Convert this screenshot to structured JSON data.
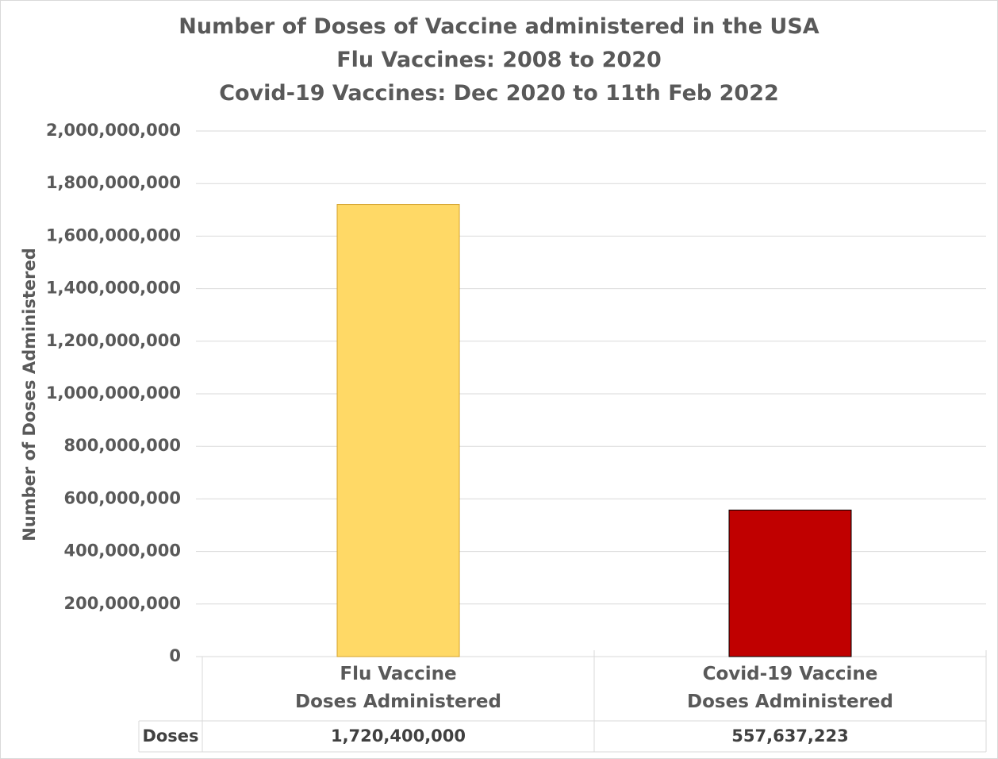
{
  "chart_data": {
    "type": "bar",
    "title": "Number of Doses of Vaccine administered in the USA",
    "subtitle": "Flu Vaccines: 2008 to 2020\nCovid-19 Vaccines: Dec 2020 to 11th Feb 2022",
    "y_label": "Number of Doses Administered",
    "categories": [
      "Flu Vaccine\nDoses Administered",
      "Covid-19 Vaccine\nDoses Administered"
    ],
    "series": [
      {
        "name": "Doses",
        "colors": [
          "#ffd966",
          "#c00000"
        ],
        "edge_colors": [
          "#d4a22a",
          "#000000"
        ],
        "values": [
          1720400000,
          557637223
        ],
        "value_labels": [
          "1,720,400,000",
          "557,637,223"
        ]
      }
    ],
    "ylim": [
      0,
      2000000000
    ],
    "yticks": [
      0,
      {
        "value": 200000000,
        "label": "200,000,000"
      },
      {
        "value": 400000000,
        "label": "400,000,000"
      },
      {
        "value": 600000000,
        "label": "600,000,000"
      },
      {
        "value": 800000000,
        "label": "800,000,000"
      },
      {
        "value": 1000000000,
        "label": "1,000,000,000"
      },
      {
        "value": 1200000000,
        "label": "1,200,000,000"
      },
      {
        "value": 1400000000,
        "label": "1,400,000,000"
      },
      {
        "value": 1600000000,
        "label": "1,600,000,000"
      },
      {
        "value": 1800000000,
        "label": "1,800,000,000"
      },
      {
        "value": 2000000000,
        "label": "2,000,000,000"
      }
    ],
    "grid": true
  }
}
